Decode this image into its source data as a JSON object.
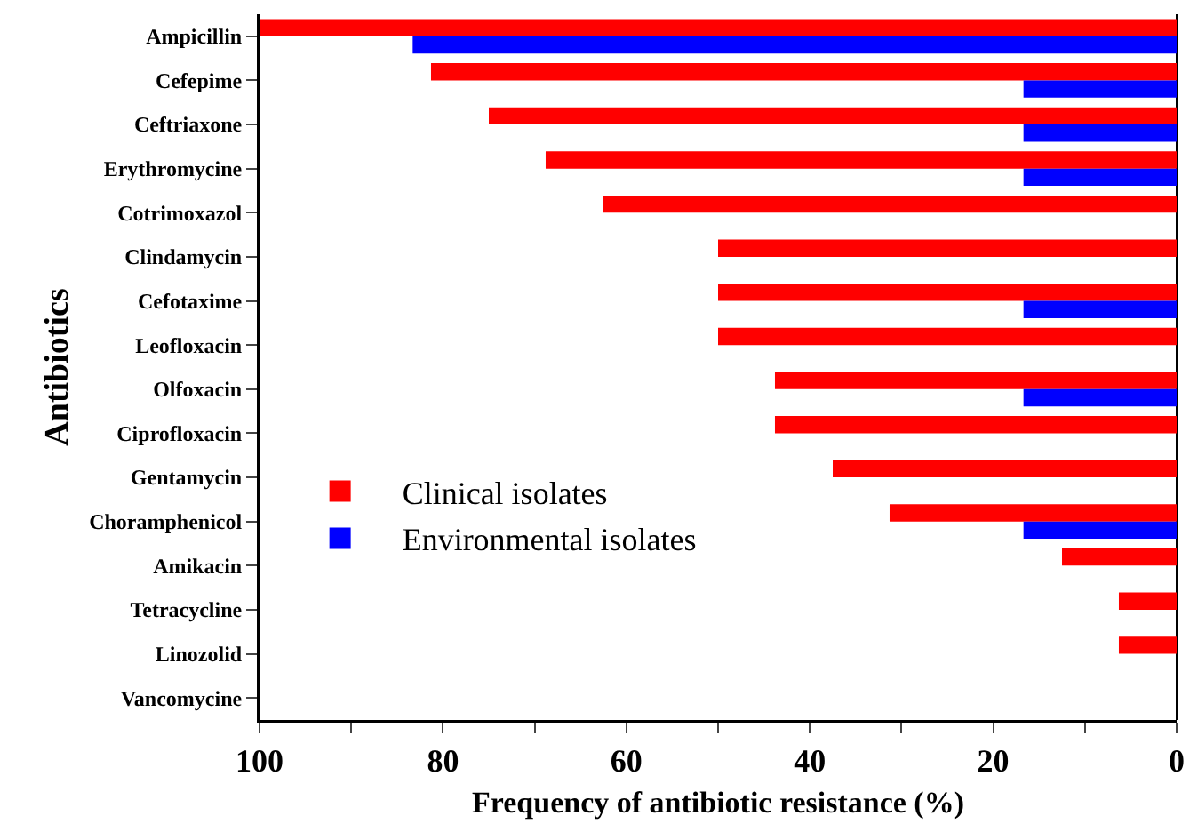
{
  "chart_data": {
    "type": "bar",
    "orientation": "horizontal",
    "xlabel": "Frequency of antibiotic resistance (%)",
    "ylabel": "Antibiotics",
    "categories": [
      "Ampicillin",
      "Cefepime",
      "Ceftriaxone",
      "Erythromycine",
      "Cotrimoxazol",
      "Clindamycin",
      "Cefotaxime",
      "Leofloxacin",
      "Olfoxacin",
      "Ciprofloxacin",
      "Gentamycin",
      "Choramphenicol",
      "Amikacin",
      "Tetracycline",
      "Linozolid",
      "Vancomycine"
    ],
    "series": [
      {
        "name": "Clinical isolates",
        "color": "#ff0000",
        "values": [
          100,
          81.3,
          75,
          68.8,
          62.5,
          50,
          50,
          50,
          43.8,
          43.8,
          37.5,
          31.3,
          12.5,
          6.3,
          6.3,
          0
        ]
      },
      {
        "name": "Environmental isolates",
        "color": "#0000ff",
        "values": [
          83.3,
          16.7,
          16.7,
          16.7,
          0,
          0,
          16.7,
          0,
          16.7,
          0,
          0,
          16.7,
          0,
          0,
          0,
          0
        ]
      }
    ],
    "xlim": [
      100,
      0
    ],
    "xticks": [
      100,
      {
        "value": 90,
        "label": null
      },
      80,
      {
        "value": 70,
        "label": null
      },
      60,
      {
        "value": 50,
        "label": null
      },
      40,
      {
        "value": 30,
        "label": null
      },
      20,
      {
        "value": 10,
        "label": null
      },
      0
    ],
    "grid": false,
    "legend": "left"
  }
}
